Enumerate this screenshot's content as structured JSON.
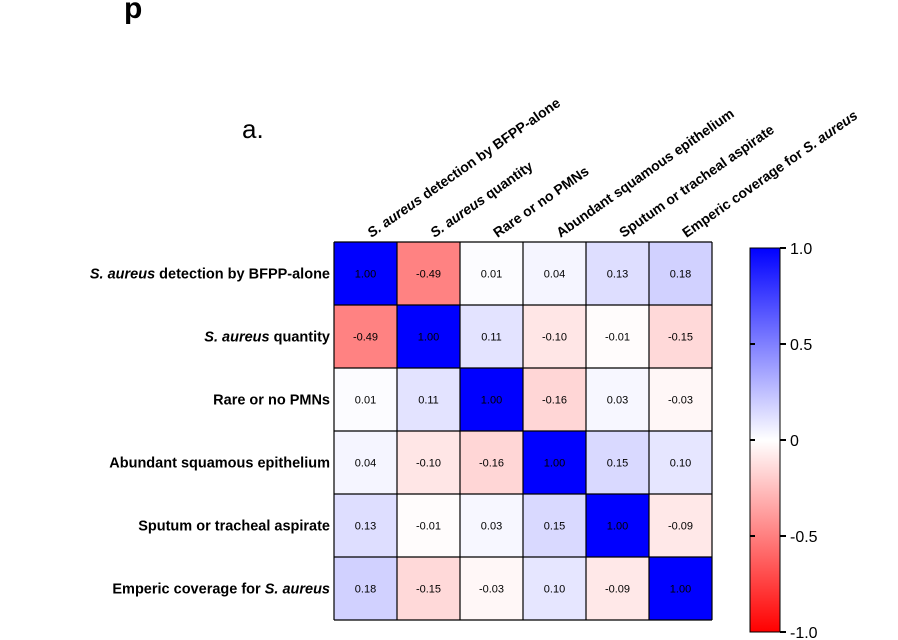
{
  "panel_letter": "a.",
  "top_fragment": "p",
  "chart_data": {
    "type": "heatmap",
    "title": "",
    "rows": [
      {
        "segments": [
          {
            "text": "S. aureus",
            "italic": true
          },
          {
            "text": " detection by BFPP-alone",
            "italic": false
          }
        ]
      },
      {
        "segments": [
          {
            "text": "S. aureus",
            "italic": true
          },
          {
            "text": " quantity",
            "italic": false
          }
        ]
      },
      {
        "segments": [
          {
            "text": "Rare or no PMNs",
            "italic": false
          }
        ]
      },
      {
        "segments": [
          {
            "text": "Abundant squamous epithelium",
            "italic": false
          }
        ]
      },
      {
        "segments": [
          {
            "text": "Sputum or tracheal aspirate",
            "italic": false
          }
        ]
      },
      {
        "segments": [
          {
            "text": "Emperic coverage for  ",
            "italic": false
          },
          {
            "text": "S. aureus",
            "italic": true
          }
        ]
      }
    ],
    "columns": [
      {
        "segments": [
          {
            "text": "S. aureus",
            "italic": true
          },
          {
            "text": " detection by BFPP-alone",
            "italic": false
          }
        ]
      },
      {
        "segments": [
          {
            "text": "S. aureus",
            "italic": true
          },
          {
            "text": " quantity",
            "italic": false
          }
        ]
      },
      {
        "segments": [
          {
            "text": "Rare or no PMNs",
            "italic": false
          }
        ]
      },
      {
        "segments": [
          {
            "text": "Abundant squamous epithelium",
            "italic": false
          }
        ]
      },
      {
        "segments": [
          {
            "text": "Sputum or tracheal aspirate",
            "italic": false
          }
        ]
      },
      {
        "segments": [
          {
            "text": "Emperic coverage for ",
            "italic": false
          },
          {
            "text": "S. aureus",
            "italic": true
          }
        ]
      }
    ],
    "values": [
      [
        1.0,
        -0.49,
        0.01,
        0.04,
        0.13,
        0.18
      ],
      [
        -0.49,
        1.0,
        0.11,
        -0.1,
        -0.01,
        -0.15
      ],
      [
        0.01,
        0.11,
        1.0,
        -0.16,
        0.03,
        -0.03
      ],
      [
        0.04,
        -0.1,
        -0.16,
        1.0,
        0.15,
        0.1
      ],
      [
        0.13,
        -0.01,
        0.03,
        0.15,
        1.0,
        -0.09
      ],
      [
        0.18,
        -0.15,
        -0.03,
        0.1,
        -0.09,
        1.0
      ]
    ],
    "value_labels": [
      [
        "1.00",
        "-0.49",
        "0.01",
        "0.04",
        "0.13",
        "0.18"
      ],
      [
        "-0.49",
        "1.00",
        "0.11",
        "-0.10",
        "-0.01",
        "-0.15"
      ],
      [
        "0.01",
        "0.11",
        "1.00",
        "-0.16",
        "0.03",
        "-0.03"
      ],
      [
        "0.04",
        "-0.10",
        "-0.16",
        "1.00",
        "0.15",
        "0.10"
      ],
      [
        "0.13",
        "-0.01",
        "0.03",
        "0.15",
        "1.00",
        "-0.09"
      ],
      [
        "0.18",
        "-0.15",
        "-0.03",
        "0.10",
        "-0.09",
        "1.00"
      ]
    ],
    "colorbar": {
      "range": [
        -1.0,
        1.0
      ],
      "ticks": [
        1.0,
        0.5,
        0,
        -0.5,
        -1.0
      ],
      "tick_labels": [
        "1.0",
        "0.5",
        "0",
        "-0.5",
        "-1.0"
      ],
      "colors": {
        "min": "#ff0000",
        "mid": "#ffffff",
        "max": "#0000ff"
      }
    },
    "grid": true
  }
}
